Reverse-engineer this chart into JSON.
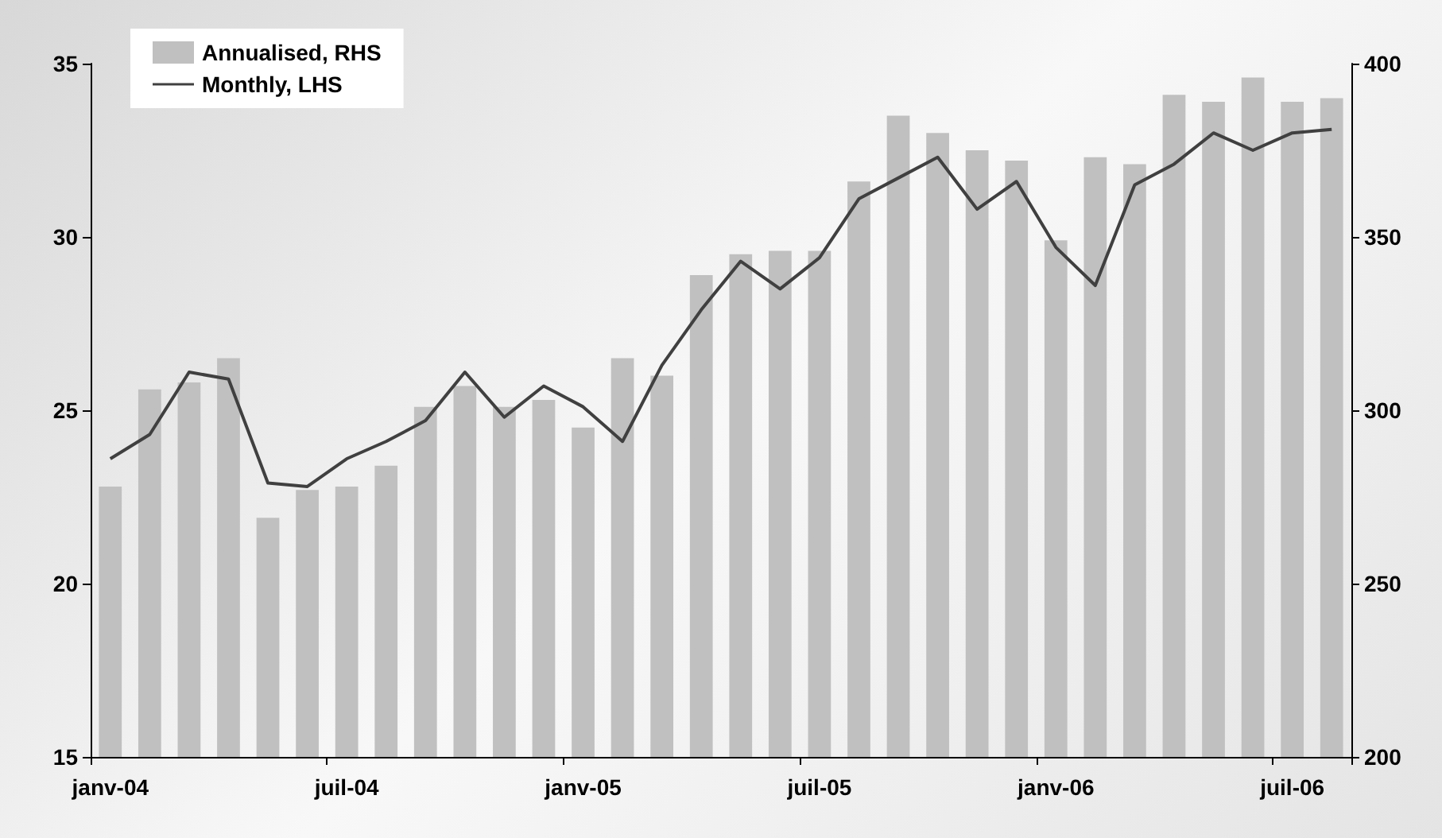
{
  "chart_data": {
    "type": "bar",
    "categories": [
      "janv-04",
      null,
      null,
      null,
      null,
      null,
      "juil-04",
      null,
      null,
      null,
      null,
      null,
      "janv-05",
      null,
      null,
      null,
      null,
      null,
      "juil-05",
      null,
      null,
      null,
      null,
      null,
      "janv-06",
      null,
      null,
      null,
      null,
      null,
      "juil-06",
      null
    ],
    "series": [
      {
        "name": "Annualised, RHS",
        "axis": "y2",
        "color": "#c0c0c0",
        "values": [
          278,
          306,
          308,
          315,
          269,
          277,
          278,
          284,
          301,
          307,
          301,
          303,
          295,
          315,
          310,
          339,
          345,
          346,
          346,
          366,
          385,
          380,
          375,
          372,
          349,
          373,
          371,
          391,
          389,
          396,
          389,
          390
        ]
      },
      {
        "name": "Monthly, LHS",
        "type": "line",
        "color": "#404040",
        "values": [
          23.6,
          24.3,
          26.1,
          25.9,
          22.9,
          22.8,
          23.6,
          24.1,
          24.7,
          26.1,
          24.8,
          25.7,
          25.1,
          24.1,
          26.3,
          27.9,
          29.3,
          28.5,
          29.4,
          31.1,
          31.7,
          32.3,
          30.8,
          31.6,
          29.7,
          28.6,
          31.5,
          32.1,
          33.0,
          32.5,
          33.0,
          33.1
        ]
      }
    ],
    "ylim": [
      15,
      35
    ],
    "yticks": [
      15,
      20,
      25,
      30,
      35
    ],
    "y2lim": [
      200,
      400
    ],
    "y2ticks": [
      200,
      250,
      300,
      350,
      400
    ],
    "legend": "top left",
    "grid": false,
    "marker": "none",
    "line_style": "solid"
  }
}
